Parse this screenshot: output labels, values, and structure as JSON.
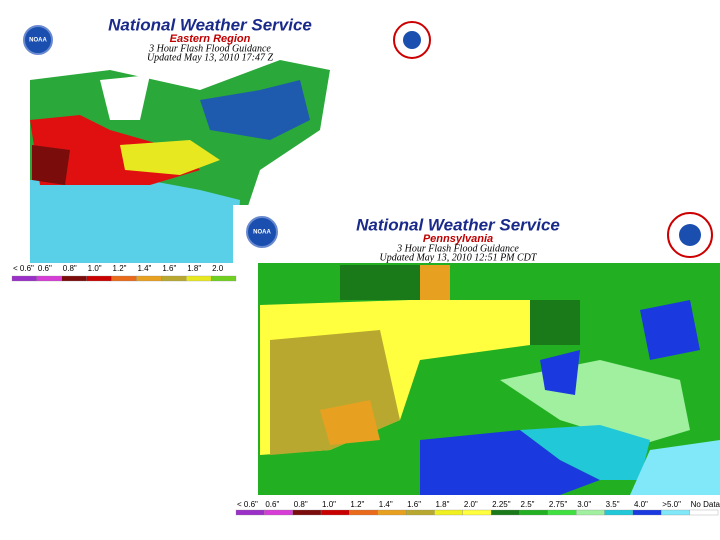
{
  "maps": [
    {
      "title": "National Weather Service",
      "region": "Eastern Region",
      "subtitle": "3 Hour Flash Flood Guidance",
      "updated": "Updated May 13, 2010 17:47 Z",
      "logo": "NOAA",
      "legend": [
        {
          "label": "< 0.6\"",
          "color": "#9b30c8"
        },
        {
          "label": "0.6\"",
          "color": "#d63cd6"
        },
        {
          "label": "0.8\"",
          "color": "#7a0c0c"
        },
        {
          "label": "1.0\"",
          "color": "#c80000"
        },
        {
          "label": "1.2\"",
          "color": "#e86a1a"
        },
        {
          "label": "1.4\"",
          "color": "#e8a020"
        },
        {
          "label": "1.6\"",
          "color": "#b8a830"
        },
        {
          "label": "1.8\"",
          "color": "#e8e820"
        },
        {
          "label": "2.0",
          "color": "#6fd020"
        }
      ]
    },
    {
      "title": "National Weather Service",
      "region": "Pennsylvania",
      "subtitle": "3 Hour Flash Flood Guidance",
      "updated": "Updated May 13, 2010 12:51 PM CDT",
      "logo": "NOAA",
      "legend": [
        {
          "label": "< 0.6\"",
          "color": "#9b30c8"
        },
        {
          "label": "0.6\"",
          "color": "#d63cd6"
        },
        {
          "label": "0.8\"",
          "color": "#7a0c0c"
        },
        {
          "label": "1.0\"",
          "color": "#c80000"
        },
        {
          "label": "1.2\"",
          "color": "#e86a1a"
        },
        {
          "label": "1.4\"",
          "color": "#e8a020"
        },
        {
          "label": "1.6\"",
          "color": "#b8a830"
        },
        {
          "label": "1.8\"",
          "color": "#f0f020"
        },
        {
          "label": "2.0\"",
          "color": "#ffff40"
        },
        {
          "label": "2.25\"",
          "color": "#1a7a1a"
        },
        {
          "label": "2.5\"",
          "color": "#22b022"
        },
        {
          "label": "2.75\"",
          "color": "#40e040"
        },
        {
          "label": "3.0\"",
          "color": "#a0f0a0"
        },
        {
          "label": "3.5\"",
          "color": "#20c8d8"
        },
        {
          "label": "4.0\"",
          "color": "#1a3ae0"
        },
        {
          "label": ">5.0\"",
          "color": "#80e8f8"
        },
        {
          "label": "No Data",
          "color": "#ffffff"
        }
      ]
    }
  ]
}
